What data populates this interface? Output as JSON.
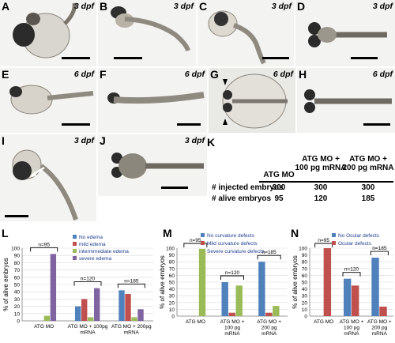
{
  "panels": {
    "A": {
      "label": "A",
      "stage": "3 dpf"
    },
    "B": {
      "label": "B",
      "stage": "3 dpf"
    },
    "C": {
      "label": "C",
      "stage": "3 dpf"
    },
    "D": {
      "label": "D",
      "stage": "3 dpf"
    },
    "E": {
      "label": "E",
      "stage": "6 dpf"
    },
    "F": {
      "label": "F",
      "stage": "6 dpf"
    },
    "G": {
      "label": "G",
      "stage": "6 dpf"
    },
    "H": {
      "label": "H",
      "stage": "6 dpf"
    },
    "I": {
      "label": "I",
      "stage": "3 dpf"
    },
    "J": {
      "label": "J",
      "stage": "3 dpf"
    },
    "K": {
      "label": "K"
    },
    "L": {
      "label": "L"
    },
    "M": {
      "label": "M"
    },
    "N": {
      "label": "N"
    }
  },
  "table_k": {
    "headers": [
      "ATG MO",
      "ATG MO +\n100 pg mRNA",
      "ATG MO +\n200 pg mRNA"
    ],
    "rows": [
      {
        "label": "# injected embryos",
        "values": [
          "300",
          "300",
          "300"
        ]
      },
      {
        "label": "# alive embryos",
        "values": [
          "95",
          "120",
          "185"
        ]
      }
    ]
  },
  "chart_data": [
    {
      "type": "bar",
      "panel": "L",
      "ylabel": "% of alive embryos",
      "ylim": [
        0,
        100
      ],
      "yticks": [
        0,
        10,
        20,
        30,
        40,
        50,
        60,
        70,
        80,
        90,
        100
      ],
      "categories": [
        "ATG MO",
        "ATG MO + 100pg mRNA",
        "ATG MO + 200pg mRNA"
      ],
      "series": [
        {
          "name": "No edema",
          "color": "#4f81bd",
          "values": [
            0,
            20,
            42
          ]
        },
        {
          "name": "mild edema",
          "color": "#c0504d",
          "values": [
            0,
            30,
            37
          ]
        },
        {
          "name": "intermmediate edema",
          "color": "#9bbb59",
          "values": [
            7,
            5,
            5
          ]
        },
        {
          "name": "severe edema",
          "color": "#8064a2",
          "values": [
            92,
            45,
            16
          ]
        }
      ],
      "annotations": [
        "n=95",
        "n=120",
        "n=185"
      ]
    },
    {
      "type": "bar",
      "panel": "M",
      "ylabel": "% of alive embryos",
      "ylim": [
        0,
        100
      ],
      "yticks": [
        0,
        10,
        20,
        30,
        40,
        50,
        60,
        70,
        80,
        90,
        100
      ],
      "categories": [
        "ATG MO",
        "ATG MO + 100 pg mRNA",
        "ATG MO + 200 pg mRNA"
      ],
      "series": [
        {
          "name": "No curvature defects",
          "color": "#4f81bd",
          "values": [
            0,
            50,
            80
          ]
        },
        {
          "name": "Mild curvature defects",
          "color": "#c0504d",
          "values": [
            0,
            5,
            5
          ]
        },
        {
          "name": "Severe curvature defects",
          "color": "#9bbb59",
          "values": [
            99,
            45,
            15
          ]
        }
      ],
      "annotations": [
        "n=95",
        "n=120",
        "n=185"
      ]
    },
    {
      "type": "bar",
      "panel": "N",
      "ylabel": "% of alive embryos",
      "ylim": [
        0,
        100
      ],
      "yticks": [
        0,
        10,
        20,
        30,
        40,
        50,
        60,
        70,
        80,
        90,
        100
      ],
      "categories": [
        "ATG MO",
        "ATG MO + 100 pg mRNA",
        "ATG MO + 200 pg mRNA"
      ],
      "series": [
        {
          "name": "No Ocular defects",
          "color": "#4f81bd",
          "values": [
            0,
            55,
            86
          ]
        },
        {
          "name": "Ocular defects",
          "color": "#c0504d",
          "values": [
            100,
            45,
            14
          ]
        }
      ],
      "annotations": [
        "n=95",
        "n=120",
        "n=185"
      ]
    }
  ]
}
